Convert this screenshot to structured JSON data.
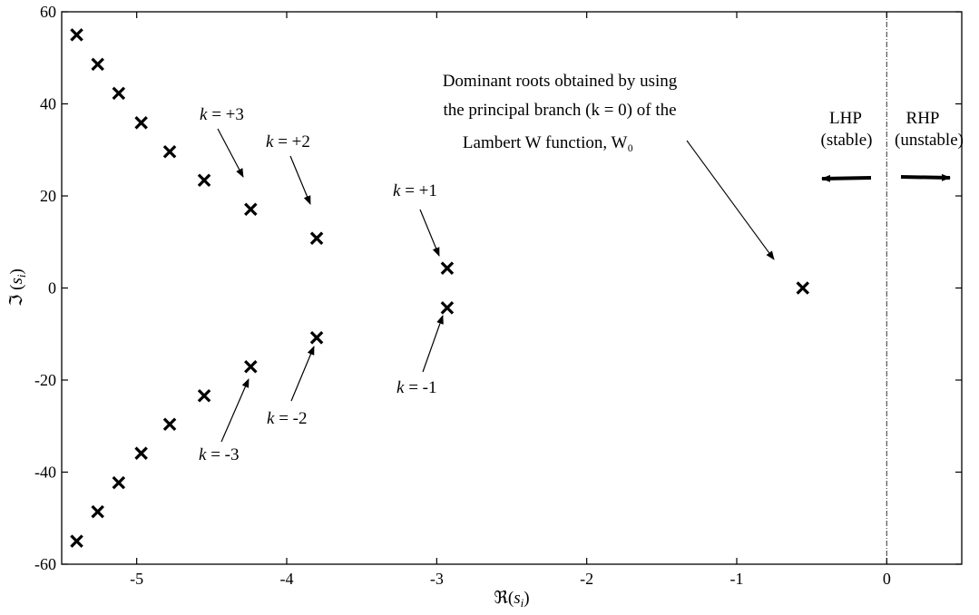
{
  "chart_data": {
    "type": "scatter",
    "xlabel": "ℜ(s_i)",
    "ylabel": "ℑ(s_i)",
    "xlim": [
      -5.5,
      0.5
    ],
    "ylim": [
      -60,
      60
    ],
    "xticks": [
      -5,
      -4,
      -3,
      -2,
      -1,
      0
    ],
    "yticks": [
      -60,
      -40,
      -20,
      0,
      20,
      40,
      60
    ],
    "xtick_labels": [
      "-5",
      "-4",
      "-3",
      "-2",
      "-1",
      "0"
    ],
    "ytick_labels": [
      "-60",
      "-40",
      "-20",
      "0",
      "20",
      "40",
      "60"
    ],
    "grid": false,
    "marker": "x",
    "series": [
      {
        "points": [
          {
            "x": -5.4,
            "y": 55.0
          },
          {
            "x": -5.26,
            "y": 48.6
          },
          {
            "x": -5.12,
            "y": 42.3
          },
          {
            "x": -4.97,
            "y": 35.9
          },
          {
            "x": -4.78,
            "y": 29.6
          },
          {
            "x": -4.55,
            "y": 23.4
          },
          {
            "x": -4.24,
            "y": 17.1
          },
          {
            "x": -3.8,
            "y": 10.8
          },
          {
            "x": -2.93,
            "y": 4.3
          },
          {
            "x": -2.93,
            "y": -4.3
          },
          {
            "x": -3.8,
            "y": -10.8
          },
          {
            "x": -4.24,
            "y": -17.1
          },
          {
            "x": -4.55,
            "y": -23.4
          },
          {
            "x": -4.78,
            "y": -29.6
          },
          {
            "x": -4.97,
            "y": -35.9
          },
          {
            "x": -5.12,
            "y": -42.3
          },
          {
            "x": -5.26,
            "y": -48.6
          },
          {
            "x": -5.4,
            "y": -55.0
          },
          {
            "x": -0.56,
            "y": 0.0
          }
        ]
      }
    ],
    "stability_boundary_x": 0,
    "annotations": {
      "k_p3": "k = +3",
      "k_p2": "k = +2",
      "k_p1": "k = +1",
      "k_m1": "k = -1",
      "k_m2": "k = -2",
      "k_m3": "k = -3",
      "dominant_line1": "Dominant roots obtained by using",
      "dominant_line2": "the principal branch (k = 0) of the",
      "dominant_line3": "Lambert W function, W₀",
      "lhp": "LHP",
      "lhp_sub": "(stable)",
      "rhp": "RHP",
      "rhp_sub": "(unstable)"
    }
  }
}
